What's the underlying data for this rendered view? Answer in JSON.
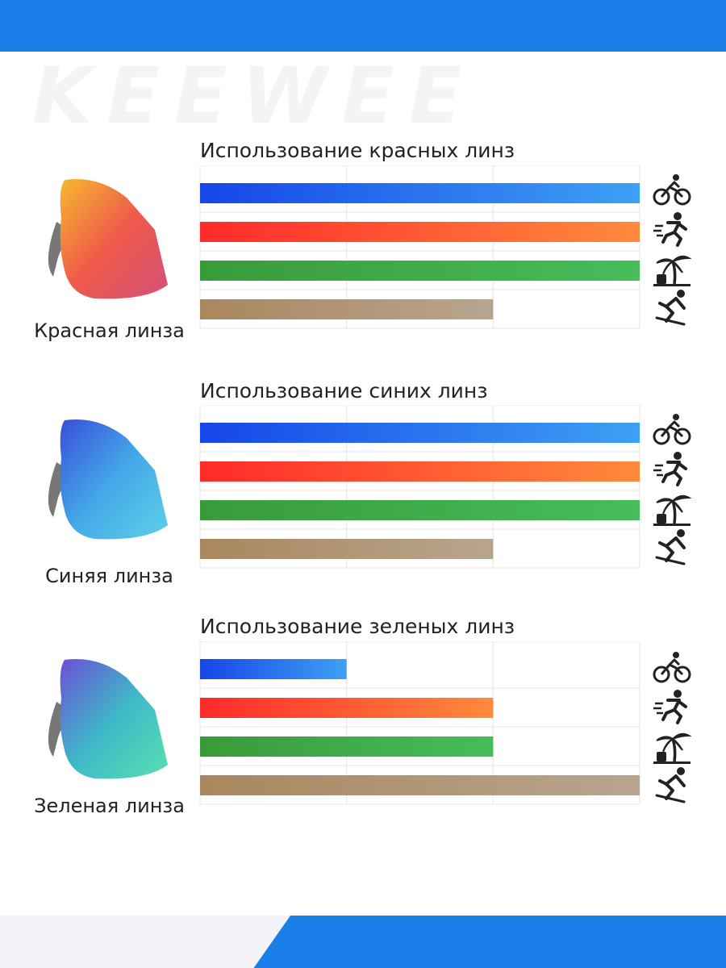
{
  "watermark": "KEEWEE",
  "colors": {
    "cycling": [
      "#1646e8",
      "#3ea0f4"
    ],
    "running": [
      "#ff2a2a",
      "#ff8a3c"
    ],
    "beach": [
      "#3a9a3a",
      "#46bd5a"
    ],
    "skiing": [
      "#a9875e",
      "#b8a58f"
    ],
    "grid": "#e6e6e6",
    "brand": "#1a7fe8"
  },
  "activity_icons": [
    "cycling-icon",
    "running-icon",
    "beach-icon",
    "skiing-icon"
  ],
  "sections": [
    {
      "lens_label": "Красная линза",
      "lens_gradient": [
        "#f7b830",
        "#ef5a4a",
        "#d4507a"
      ],
      "chart_title": "Использование красных линз"
    },
    {
      "lens_label": "Синяя линза",
      "lens_gradient": [
        "#3a4fd8",
        "#43a8e8",
        "#5fd0e8"
      ],
      "chart_title": "Использование синих линз"
    },
    {
      "lens_label": "Зеленая линза",
      "lens_gradient": [
        "#6a4fd8",
        "#3fb8c8",
        "#57e0b0"
      ],
      "chart_title": "Использование зеленых линз"
    }
  ],
  "chart_data": [
    {
      "type": "bar",
      "orientation": "horizontal",
      "title": "Использование красных линз",
      "categories": [
        "cycling",
        "running",
        "beach",
        "skiing"
      ],
      "values": [
        3,
        3,
        3,
        2
      ],
      "xlim": [
        0,
        3
      ],
      "grid": true
    },
    {
      "type": "bar",
      "orientation": "horizontal",
      "title": "Использование синих линз",
      "categories": [
        "cycling",
        "running",
        "beach",
        "skiing"
      ],
      "values": [
        3,
        3,
        3,
        2
      ],
      "xlim": [
        0,
        3
      ],
      "grid": true
    },
    {
      "type": "bar",
      "orientation": "horizontal",
      "title": "Использование зеленых линз",
      "categories": [
        "cycling",
        "running",
        "beach",
        "skiing"
      ],
      "values": [
        1,
        2,
        2,
        3
      ],
      "xlim": [
        0,
        3
      ],
      "grid": true
    }
  ]
}
